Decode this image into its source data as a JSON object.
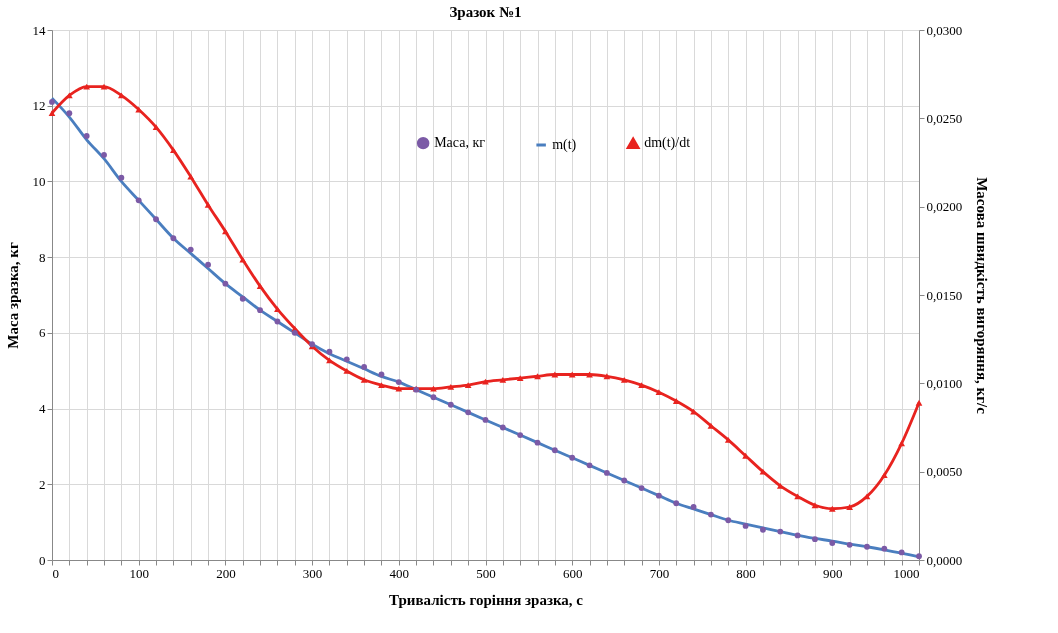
{
  "chart_data": {
    "type": "line",
    "title": "Зразок №1",
    "xlabel": "Тривалість горіння зразка, с",
    "ylabel": "Маса зразка, кг",
    "y2label": "Масова швидкість вигоряння, кг/с",
    "x": [
      0,
      20,
      40,
      60,
      80,
      100,
      120,
      140,
      160,
      180,
      200,
      220,
      240,
      260,
      280,
      300,
      320,
      340,
      360,
      380,
      400,
      420,
      440,
      460,
      480,
      500,
      520,
      540,
      560,
      580,
      600,
      620,
      640,
      660,
      680,
      700,
      720,
      740,
      760,
      780,
      800,
      820,
      840,
      860,
      880,
      900,
      920,
      940,
      960,
      980,
      1000
    ],
    "series": [
      {
        "name": "Маса, кг",
        "type": "scatter",
        "marker": "circle",
        "color": "#7b5aa6",
        "values": [
          12.1,
          11.8,
          11.2,
          10.7,
          10.1,
          9.5,
          9.0,
          8.5,
          8.2,
          7.8,
          7.3,
          6.9,
          6.6,
          6.3,
          6.0,
          5.7,
          5.5,
          5.3,
          5.1,
          4.9,
          4.7,
          4.5,
          4.3,
          4.1,
          3.9,
          3.7,
          3.5,
          3.3,
          3.1,
          2.9,
          2.7,
          2.5,
          2.3,
          2.1,
          1.9,
          1.7,
          1.5,
          1.4,
          1.2,
          1.05,
          0.9,
          0.8,
          0.75,
          0.65,
          0.55,
          0.45,
          0.4,
          0.35,
          0.3,
          0.2,
          0.1
        ]
      },
      {
        "name": "m(t)",
        "marker": "none",
        "color": "#4a7ebf",
        "values": [
          12.2,
          11.7,
          11.1,
          10.6,
          10.0,
          9.5,
          9.0,
          8.5,
          8.1,
          7.7,
          7.3,
          6.95,
          6.6,
          6.3,
          6.0,
          5.7,
          5.45,
          5.25,
          5.05,
          4.85,
          4.7,
          4.5,
          4.3,
          4.1,
          3.9,
          3.7,
          3.5,
          3.3,
          3.1,
          2.9,
          2.7,
          2.5,
          2.3,
          2.1,
          1.9,
          1.7,
          1.5,
          1.35,
          1.2,
          1.05,
          0.95,
          0.85,
          0.75,
          0.65,
          0.57,
          0.5,
          0.42,
          0.35,
          0.27,
          0.18,
          0.08
        ]
      },
      {
        "name": "dm(t)/dt",
        "marker": "triangle",
        "axis": "y2",
        "color": "#e8231f",
        "values": [
          0.0253,
          0.0263,
          0.0268,
          0.0268,
          0.0263,
          0.0255,
          0.0245,
          0.0232,
          0.0217,
          0.0201,
          0.0186,
          0.017,
          0.0155,
          0.0142,
          0.0131,
          0.0121,
          0.0113,
          0.0107,
          0.0102,
          0.0099,
          0.0097,
          0.0097,
          0.0097,
          0.0098,
          0.0099,
          0.0101,
          0.0102,
          0.0103,
          0.0104,
          0.0105,
          0.0105,
          0.0105,
          0.0104,
          0.0102,
          0.0099,
          0.0095,
          0.009,
          0.0084,
          0.0076,
          0.0068,
          0.0059,
          0.005,
          0.0042,
          0.0036,
          0.0031,
          0.0029,
          0.003,
          0.0036,
          0.0048,
          0.0066,
          0.0089
        ]
      }
    ],
    "xlim": [
      0,
      1000
    ],
    "xticks": [
      0,
      {
        "value": 20,
        "label": null
      },
      {
        "value": 40,
        "label": null
      },
      {
        "value": 60,
        "label": null
      },
      {
        "value": 80,
        "label": null
      },
      100,
      {
        "value": 120,
        "label": null
      },
      {
        "value": 140,
        "label": null
      },
      {
        "value": 160,
        "label": null
      },
      {
        "value": 180,
        "label": null
      },
      200,
      {
        "value": 220,
        "label": null
      },
      {
        "value": 240,
        "label": null
      },
      {
        "value": 260,
        "label": null
      },
      {
        "value": 280,
        "label": null
      },
      300,
      {
        "value": 320,
        "label": null
      },
      {
        "value": 340,
        "label": null
      },
      {
        "value": 360,
        "label": null
      },
      {
        "value": 380,
        "label": null
      },
      400,
      {
        "value": 420,
        "label": null
      },
      {
        "value": 440,
        "label": null
      },
      {
        "value": 460,
        "label": null
      },
      {
        "value": 480,
        "label": null
      },
      500,
      {
        "value": 520,
        "label": null
      },
      {
        "value": 540,
        "label": null
      },
      {
        "value": 560,
        "label": null
      },
      {
        "value": 580,
        "label": null
      },
      600,
      {
        "value": 620,
        "label": null
      },
      {
        "value": 640,
        "label": null
      },
      {
        "value": 660,
        "label": null
      },
      {
        "value": 680,
        "label": null
      },
      700,
      {
        "value": 720,
        "label": null
      },
      {
        "value": 740,
        "label": null
      },
      {
        "value": 760,
        "label": null
      },
      {
        "value": 780,
        "label": null
      },
      800,
      {
        "value": 820,
        "label": null
      },
      {
        "value": 840,
        "label": null
      },
      {
        "value": 860,
        "label": null
      },
      {
        "value": 880,
        "label": null
      },
      900,
      {
        "value": 920,
        "label": null
      },
      {
        "value": 940,
        "label": null
      },
      {
        "value": 960,
        "label": null
      },
      {
        "value": 980,
        "label": null
      },
      1000
    ],
    "ylim": [
      0,
      14
    ],
    "yticks": [
      0,
      2,
      4,
      6,
      8,
      10,
      12,
      14
    ],
    "y2lim": [
      0,
      0.03
    ],
    "y2ticks": [
      {
        "value": 0,
        "label": "0,0000"
      },
      {
        "value": 0.005,
        "label": "0,0050"
      },
      {
        "value": 0.01,
        "label": "0,0100"
      },
      {
        "value": 0.015,
        "label": "0,0150"
      },
      {
        "value": 0.02,
        "label": "0,0200"
      },
      {
        "value": 0.025,
        "label": "0,0250"
      },
      {
        "value": 0.03,
        "label": "0,0300"
      }
    ],
    "grid": true,
    "legend": "top"
  }
}
